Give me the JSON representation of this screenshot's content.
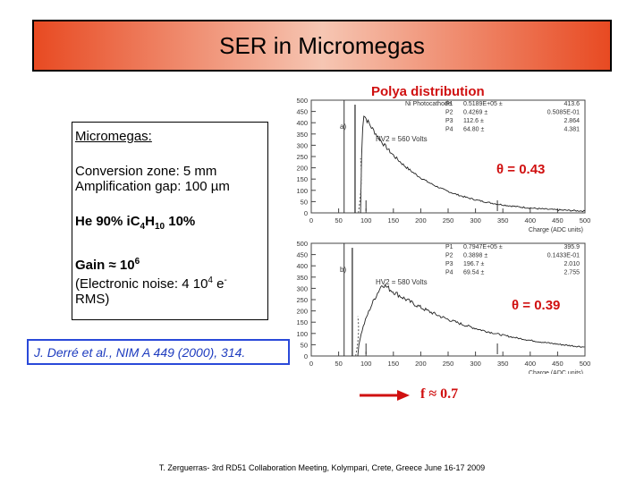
{
  "slide": {
    "title": "SER in Micromegas",
    "polya_caption": "Polya distribution",
    "info": {
      "heading": "Micromegas:",
      "conversion": "Conversion zone: 5 mm",
      "amplification": "Amplification gap: 100 µm",
      "gas_he": "He 90% iC",
      "gas_sub4": "4",
      "gas_h": "H",
      "gas_sub10": "10",
      "gas_end": " 10%",
      "gain_prefix": "Gain ≈ 10",
      "gain_exp": "6",
      "noise_line1_prefix": "(Electronic noise: 4 10",
      "noise_exp": "4",
      "noise_line1_suffix": " e",
      "noise_minus": "-",
      "noise_line2": "RMS)"
    },
    "theta_top": "θ = 0.43",
    "theta_bottom": "θ = 0.39",
    "reference": "J. Derré et al., NIM A 449 (2000), 314.",
    "f_label": "f ≈ 0.7",
    "footer": "T. Zerguerras- 3rd RD51 Collaboration Meeting, Kolympari, Crete, Greece June 16-17 2009",
    "colors": {
      "accent_red": "#d01010",
      "reference_blue": "#1d3bbf",
      "title_bar": "#e84a22"
    }
  },
  "plots": {
    "top": {
      "panel_label": "a)",
      "subtitle": "Ni Photocathode",
      "hv_label": "HV2 = 560 Volts",
      "params": [
        {
          "name": "P1",
          "value": "0.5189E+05 ±",
          "err": "413.6"
        },
        {
          "name": "P2",
          "value": "0.4269 ±",
          "err": "0.5085E-01"
        },
        {
          "name": "P3",
          "value": "112.6 ±",
          "err": "2.864"
        },
        {
          "name": "P4",
          "value": "64.80 ±",
          "err": "4.381"
        }
      ],
      "y_ticks": [
        "0",
        "50",
        "100",
        "150",
        "200",
        "250",
        "300",
        "350",
        "400",
        "450",
        "500"
      ],
      "x_ticks": [
        "0",
        "50",
        "100",
        "150",
        "200",
        "250",
        "300",
        "350",
        "400",
        "450",
        "500"
      ],
      "xlabel": "Charge (ADC units)",
      "ylim": [
        0,
        500
      ],
      "xlim": [
        0,
        500
      ],
      "threshold_x": 60,
      "peak_x": 80,
      "peak_y": 480,
      "curve_peak_x": 95,
      "curve_peak_y": 440,
      "mean": 112.6
    },
    "bottom": {
      "panel_label": "b)",
      "hv_label": "HV2 = 580 Volts",
      "params": [
        {
          "name": "P1",
          "value": "0.7947E+05 ±",
          "err": "395.9"
        },
        {
          "name": "P2",
          "value": "0.3898 ±",
          "err": "0.1433E-01"
        },
        {
          "name": "P3",
          "value": "196.7 ±",
          "err": "2.010"
        },
        {
          "name": "P4",
          "value": "69.54 ±",
          "err": "2.755"
        }
      ],
      "y_ticks": [
        "0",
        "50",
        "100",
        "150",
        "200",
        "250",
        "300",
        "350",
        "400",
        "450",
        "500"
      ],
      "x_ticks": [
        "0",
        "50",
        "100",
        "150",
        "200",
        "250",
        "300",
        "350",
        "400",
        "450",
        "500"
      ],
      "xlabel": "Charge (ADC units)",
      "ylim": [
        0,
        500
      ],
      "xlim": [
        0,
        500
      ],
      "threshold_x": 60,
      "peak_x": 75,
      "peak_y": 480,
      "curve_peak_x": 130,
      "curve_peak_y": 320,
      "mean": 196.7
    }
  }
}
